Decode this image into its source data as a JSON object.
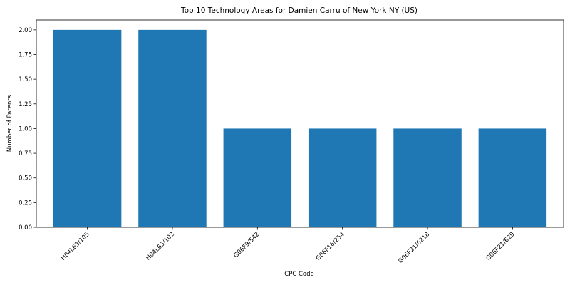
{
  "chart_data": {
    "type": "bar",
    "title": "Top 10 Technology Areas for Damien Carru of New York NY (US)",
    "xlabel": "CPC Code",
    "ylabel": "Number of Patents",
    "categories": [
      "H04L63/105",
      "H04L63/102",
      "G06F9/542",
      "G06F16/254",
      "G06F21/6218",
      "G06F21/629"
    ],
    "values": [
      2,
      2,
      1,
      1,
      1,
      1
    ],
    "ylim": [
      0,
      2.1
    ],
    "yticks": [
      "0.00",
      "0.25",
      "0.50",
      "0.75",
      "1.00",
      "1.25",
      "1.50",
      "1.75",
      "2.00"
    ],
    "grid": false,
    "bar_color": "#1f77b4"
  }
}
